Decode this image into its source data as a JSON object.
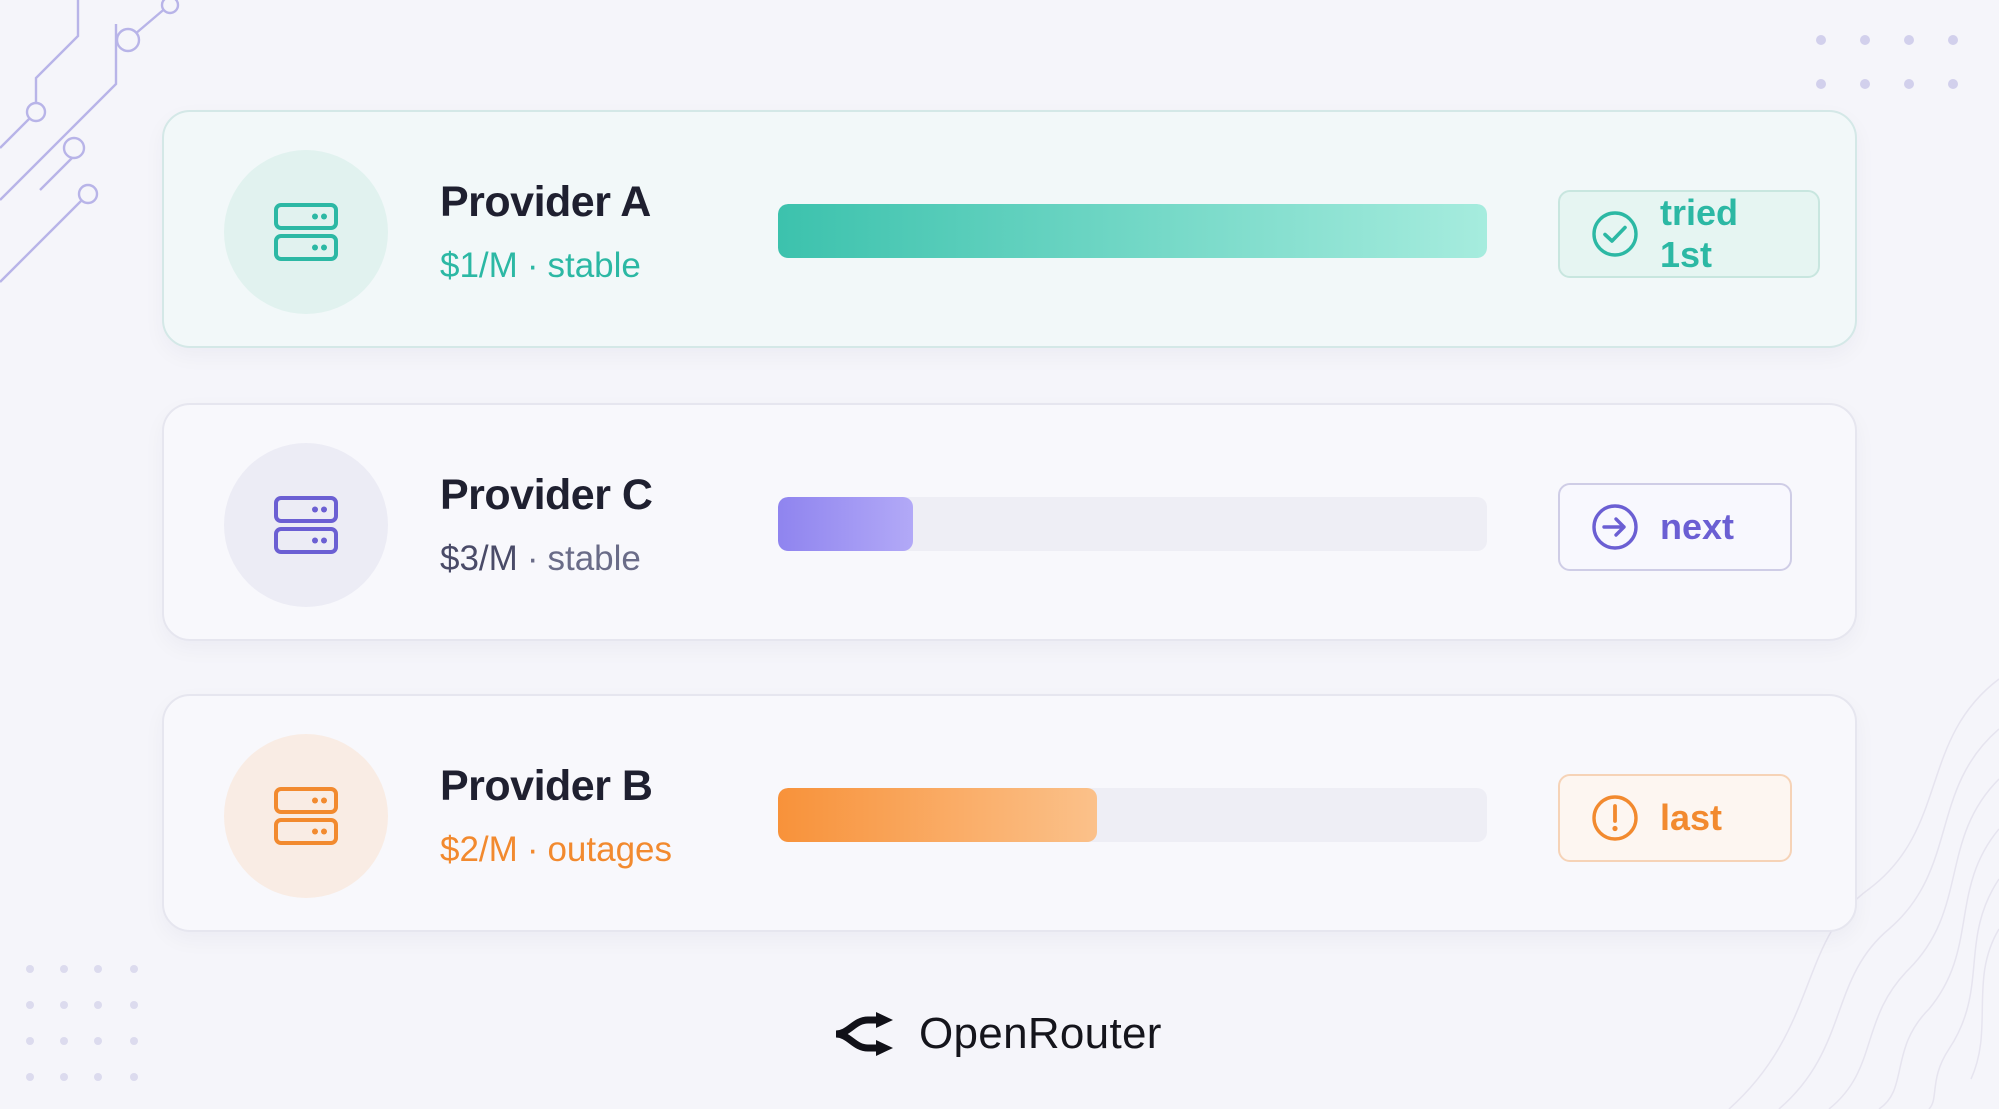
{
  "providers": [
    {
      "name": "Provider A",
      "price": "$1/M",
      "separator": "·",
      "status": "stable",
      "bar_fraction": 1.0,
      "badge_label": "tried 1st",
      "badge_icon": "check-circle-icon",
      "accent": "#2cb8a4",
      "bar_gradient": [
        "#3cc2ad",
        "#a6ecde"
      ],
      "circle_bg": "#e1f2ef",
      "badge_bg": "#e6f5f2",
      "badge_border": "#c8e6df"
    },
    {
      "name": "Provider C",
      "price": "$3/M",
      "separator": "·",
      "status": "stable",
      "bar_fraction": 0.19,
      "badge_label": "next",
      "badge_icon": "arrow-right-circle-icon",
      "accent": "#6b5fd3",
      "price_color": "#4a4b68",
      "status_color": "#6a6c88",
      "bar_gradient": [
        "#8f84ef",
        "#b2a9f7"
      ],
      "circle_bg": "#ececf5",
      "badge_bg": "#f8f8fe",
      "badge_border": "#cfcde6"
    },
    {
      "name": "Provider B",
      "price": "$2/M",
      "separator": "·",
      "status": "outages",
      "bar_fraction": 0.45,
      "badge_label": "last",
      "badge_icon": "alert-circle-icon",
      "accent": "#f28a2f",
      "bar_gradient": [
        "#f8923a",
        "#fbc18a"
      ],
      "circle_bg": "#f9ece4",
      "badge_bg": "#fdf6f1",
      "badge_border": "#f6d3b7"
    }
  ],
  "brand": {
    "logo_icon": "openrouter-logo-icon",
    "name": "OpenRouter"
  }
}
